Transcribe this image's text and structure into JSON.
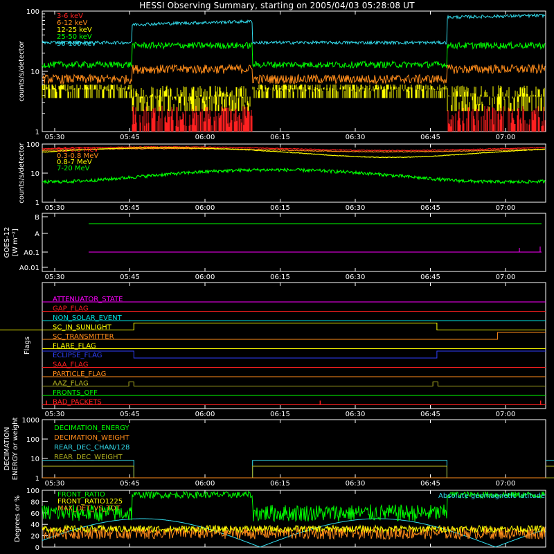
{
  "title": "HESSI Observing Summary, starting on 2005/04/03 05:28:08 UT",
  "time_ticks": [
    "05:30",
    "05:45",
    "06:00",
    "06:15",
    "06:30",
    "06:45",
    "07:00"
  ],
  "chart_data": [
    {
      "type": "line",
      "ylabel": "counts/s/detector",
      "yscale": "log",
      "ylim": [
        1,
        100
      ],
      "ytick_labels": [
        "1",
        "10",
        "100"
      ],
      "series": [
        {
          "name": "3-6 keV",
          "color": "#ff2020"
        },
        {
          "name": "6-12 keV",
          "color": "#ff8c1a"
        },
        {
          "name": "12-25 keV",
          "color": "#ffff00"
        },
        {
          "name": "25-50 keV",
          "color": "#00ff00"
        },
        {
          "name": "50-100 keV",
          "color": "#33ddee"
        }
      ]
    },
    {
      "type": "line",
      "ylabel": "counts/s/detector",
      "yscale": "log",
      "ylim": [
        1,
        100
      ],
      "ytick_labels": [
        "1",
        "10",
        "100"
      ],
      "series": [
        {
          "name": "0.1-0.3 MeV",
          "color": "#ff2020"
        },
        {
          "name": "0.3-0.8 MeV",
          "color": "#ff8c1a"
        },
        {
          "name": "0.8-7 MeV",
          "color": "#ffff00"
        },
        {
          "name": "7-20 MeV",
          "color": "#00ff00"
        }
      ]
    },
    {
      "type": "line",
      "ylabel": "GOES-12",
      "ylabel2": "[W m⁻²]",
      "ytick_labels": [
        "B",
        "A",
        "A0.1",
        "A0.01"
      ],
      "series": [
        {
          "color": "#00ff00"
        },
        {
          "color": "#ff00ff"
        }
      ]
    },
    {
      "type": "line",
      "ylabel": "Flags",
      "flags": [
        {
          "name": "ATTENUATOR_STATE",
          "color": "#ff00ff"
        },
        {
          "name": "GAP_FLAG",
          "color": "#ff2020"
        },
        {
          "name": "NON_SOLAR_EVENT",
          "color": "#00e0e0"
        },
        {
          "name": "SC_IN_SUNLIGHT",
          "color": "#ffff00"
        },
        {
          "name": "SC_TRANSMITTER",
          "color": "#ff8c1a"
        },
        {
          "name": "FLARE_FLAG",
          "color": "#ffff00"
        },
        {
          "name": "ECLIPSE_FLAG",
          "color": "#3040ff"
        },
        {
          "name": "SAA_FLAG",
          "color": "#ff2020"
        },
        {
          "name": "PARTICLE_FLAG",
          "color": "#ff8c1a"
        },
        {
          "name": "AAZ_FLAG",
          "color": "#b0b020"
        },
        {
          "name": "FRONTS_OFF",
          "color": "#00ff00"
        },
        {
          "name": "BAD_PACKETS",
          "color": "#ff2020"
        }
      ]
    },
    {
      "type": "line",
      "ylabel": "DECIMATION",
      "ylabel2": "ENERGY or weight",
      "yscale": "log",
      "ylim": [
        1,
        1000
      ],
      "ytick_labels": [
        "1",
        "10",
        "100",
        "1000"
      ],
      "series": [
        {
          "name": "DECIMATION_ENERGY",
          "color": "#00ff00"
        },
        {
          "name": "DECIMATION_WEIGHT",
          "color": "#ff8c1a"
        },
        {
          "name": "REAR_DEC_CHAN/128",
          "color": "#33ddee"
        },
        {
          "name": "REAR_DEC_WEIGHT",
          "color": "#b0b020"
        }
      ]
    },
    {
      "type": "line",
      "ylabel": "Degrees or %",
      "ylim": [
        0,
        100
      ],
      "ytick_labels": [
        "0",
        "20",
        "40",
        "60",
        "80",
        "100"
      ],
      "series": [
        {
          "name": "FRONT_RATIO",
          "color": "#00ff00"
        },
        {
          "name": "FRONT_RATIO1225",
          "color": "#ffff00"
        },
        {
          "name": "MAX_DET_VS_TOT",
          "color": "#ff8c1a"
        }
      ],
      "annotation": {
        "text": "Absolute geomagnetic latitude",
        "color": "#33ddee"
      }
    }
  ]
}
